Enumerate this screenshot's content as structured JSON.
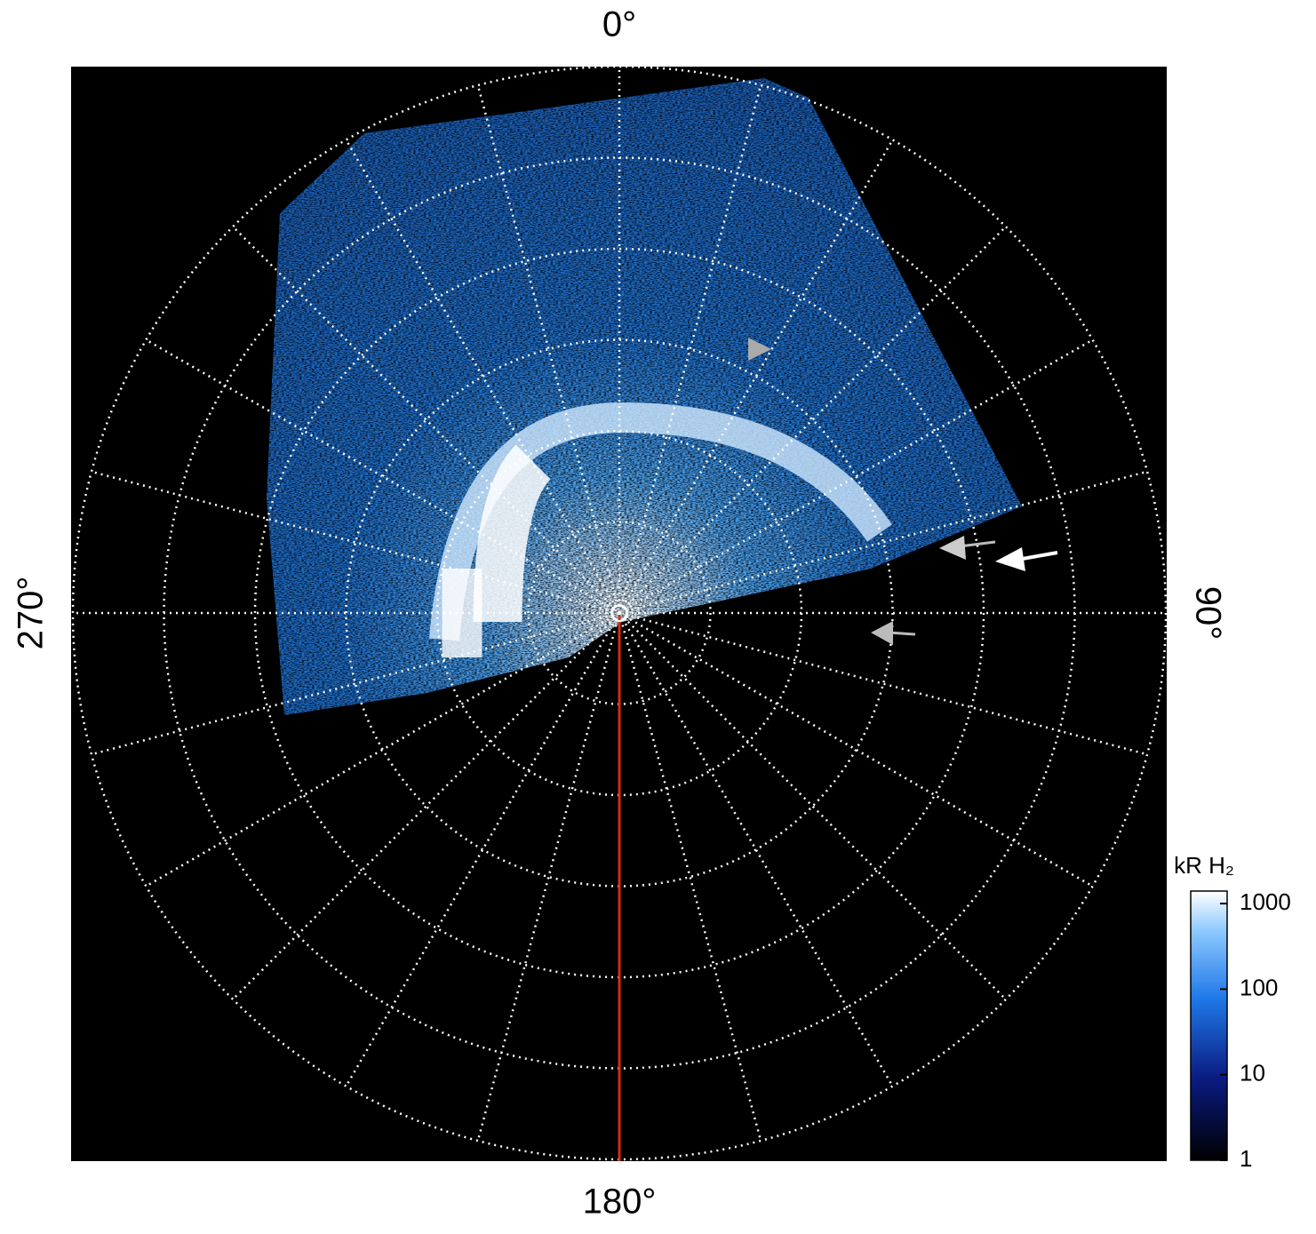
{
  "chart_data": {
    "type": "polar-image",
    "angle_labels": [
      {
        "value": 0,
        "label": "0°"
      },
      {
        "value": 90,
        "label": "90°"
      },
      {
        "value": 180,
        "label": "180°"
      },
      {
        "value": 270,
        "label": "270°"
      }
    ],
    "colorbar": {
      "label": "kR H₂",
      "lim": [
        1,
        1400
      ],
      "ticks": [
        1,
        10,
        100,
        1000
      ],
      "log": true
    }
  }
}
